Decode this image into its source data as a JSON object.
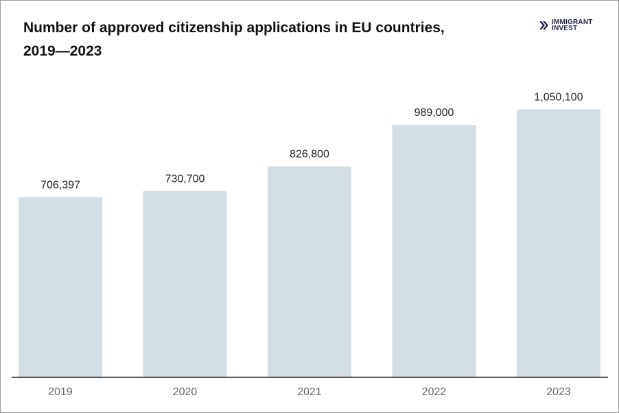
{
  "chart_data": {
    "type": "bar",
    "title": "Number of approved citizenship applications in EU countries, 2019—2023",
    "categories": [
      "2019",
      "2020",
      "2021",
      "2022",
      "2023"
    ],
    "values": [
      706397,
      730700,
      826800,
      989000,
      1050100
    ],
    "value_labels": [
      "706,397",
      "730,700",
      "826,800",
      "989,000",
      "1,050,100"
    ],
    "xlabel": "",
    "ylabel": "",
    "ylim": [
      0,
      1210000
    ],
    "grid": false,
    "bar_color": "#d3dde4"
  },
  "logo": {
    "line1": "IMMIGRANT",
    "line2": "INVEST",
    "color": "#1b2340"
  }
}
